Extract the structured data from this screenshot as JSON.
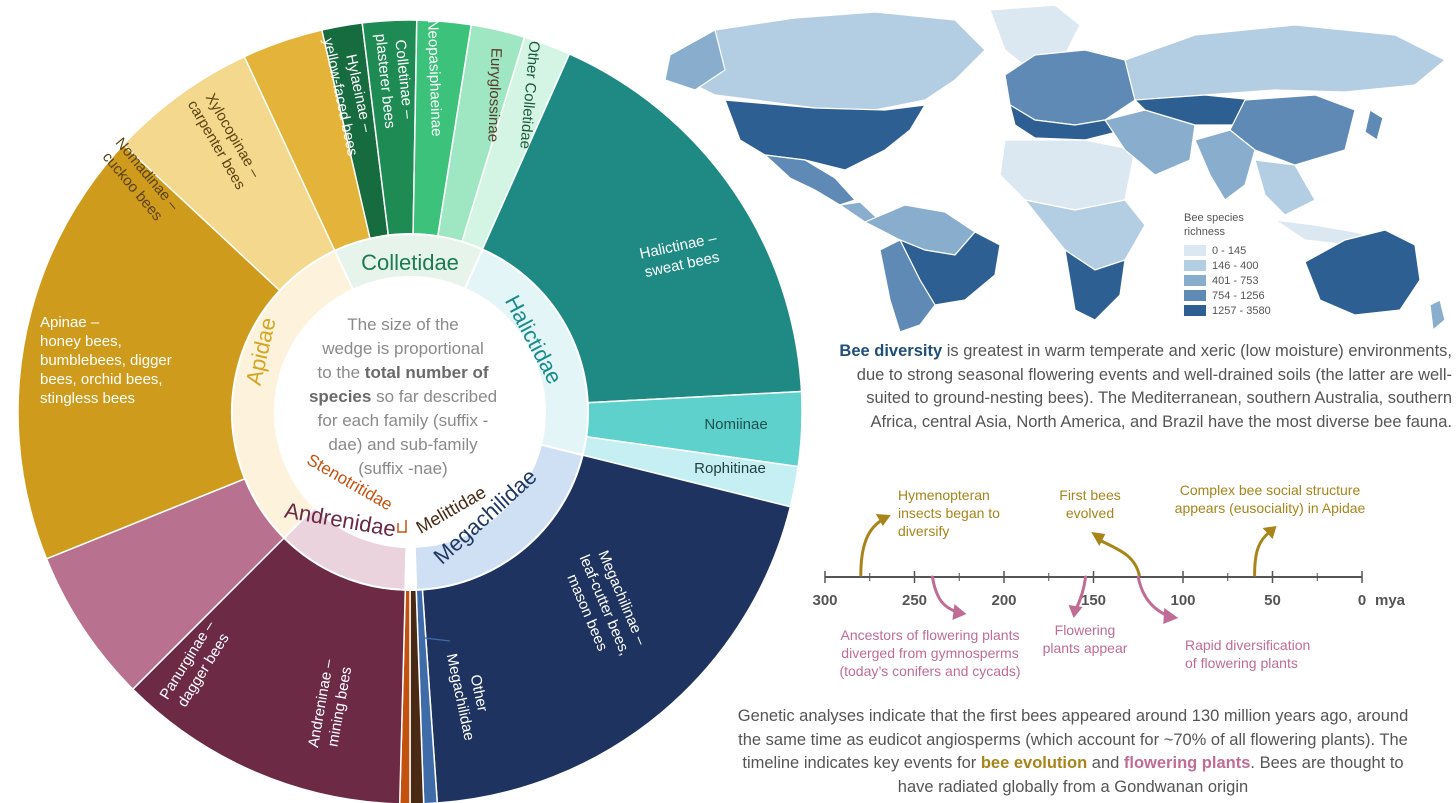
{
  "center_text": {
    "lines": [
      "The size of the",
      "wedge is proportional",
      "to the",
      "total number of",
      "species",
      "so far described",
      "for each family (suffix -",
      "dae) and sub-family",
      "(suffix -nae)"
    ]
  },
  "families": [
    {
      "name": "Colletidae",
      "color": "#1e7b4f",
      "fill": "#e6f4ec"
    },
    {
      "name": "Halictidae",
      "color": "#1a8a8a",
      "fill": "#e3f5f7"
    },
    {
      "name": "Megachilidae",
      "color": "#1f3864",
      "fill": "#cfe0f4"
    },
    {
      "name": "Melittidae",
      "color": "#4a2a14",
      "fill": "#ffffff"
    },
    {
      "name": "Andrenidae",
      "color": "#6b2a44",
      "fill": "#ead3dc"
    },
    {
      "name": "Stenotritidae",
      "color": "#c4520f",
      "fill": "#ffffff"
    },
    {
      "name": "Apidae",
      "color": "#d4a520",
      "fill": "#fdf3dc"
    }
  ],
  "subfamilies": [
    {
      "label": [
        "Hylaeinae –",
        "yellow-faced bees"
      ],
      "color": "#166b3f"
    },
    {
      "label": [
        "Colletinae –",
        "plasterer bees"
      ],
      "color": "#1f8b54"
    },
    {
      "label": [
        "Neopasiphaeinae"
      ],
      "color": "#3cc27a"
    },
    {
      "label": [
        "Euryglossinae"
      ],
      "color": "#9fe6c2"
    },
    {
      "label": [
        "Other Colletidae"
      ],
      "color": "#d4f5e4"
    },
    {
      "label": [
        "Halictinae –",
        "sweat bees"
      ],
      "color": "#1f8a84"
    },
    {
      "label": [
        "Nomiinae"
      ],
      "color": "#5fd1cd"
    },
    {
      "label": [
        "Rophitinae"
      ],
      "color": "#c5eff2"
    },
    {
      "label": [
        "Megachilinae –",
        "leaf-cutter bees,",
        "mason bees"
      ],
      "color": "#1f3360"
    },
    {
      "label": [
        "Other",
        "Megachilidae"
      ],
      "color": "#3f6ca8"
    },
    {
      "label": [
        "Melittidae"
      ],
      "color": "#4a2a14"
    },
    {
      "label": [
        "Stenotritidae"
      ],
      "color": "#c4520f"
    },
    {
      "label": [
        "Andreninae –",
        "mining bees"
      ],
      "color": "#6c2a44"
    },
    {
      "label": [
        "Panurginae –",
        "dagger bees"
      ],
      "color": "#b8728f"
    },
    {
      "label": [
        "Apinae –",
        "honey bees,",
        "bumblebees, digger",
        "bees, orchid bees,",
        "stingless bees"
      ],
      "color": "#cf9b1c"
    },
    {
      "label": [
        "Nomadinae –",
        "cuckoo bees"
      ],
      "color": "#e4b43a"
    },
    {
      "label": [
        "Xylocopinae –",
        "carpenter bees"
      ],
      "color": "#f4d88e"
    }
  ],
  "map": {
    "legend_title": [
      "Bee species",
      "richness"
    ],
    "legend": [
      {
        "range": "0 - 145",
        "color": "#dbe8f2"
      },
      {
        "range": "146 - 400",
        "color": "#b3cde2"
      },
      {
        "range": "401 - 753",
        "color": "#89aecd"
      },
      {
        "range": "754 - 1256",
        "color": "#5e8ab5"
      },
      {
        "range": "1257 - 3580",
        "color": "#2e5f93"
      }
    ]
  },
  "diversity_text": {
    "bold": "Bee diversity",
    "rest": " is greatest in warm temperate and xeric (low moisture) environments, due to strong seasonal flowering events and well-drained soils (the latter are well-suited to ground-nesting bees). The Mediterranean, southern Australia, southern Africa, central Asia, North America, and Brazil have the most diverse bee fauna."
  },
  "timeline": {
    "ticks": [
      "300",
      "250",
      "200",
      "150",
      "100",
      "50",
      "0"
    ],
    "unit": "mya",
    "bee_color": "#a8841a",
    "plant_color": "#c06c95",
    "bee_events": [
      {
        "mya": 280,
        "lines": [
          "Hymenopteran",
          "insects began to",
          "diversify"
        ]
      },
      {
        "mya": 130,
        "lines": [
          "First bees",
          "evolved"
        ]
      },
      {
        "mya": 60,
        "lines": [
          "Complex bee social structure",
          "appears (eusociality) in Apidae"
        ]
      }
    ],
    "plant_events": [
      {
        "mya": 240,
        "lines": [
          "Ancestors of flowering plants",
          "diverged from gymnosperms",
          "(today’s conifers and cycads)"
        ]
      },
      {
        "mya": 160,
        "lines": [
          "Flowering",
          "plants appear"
        ]
      },
      {
        "mya": 125,
        "lines": [
          "Rapid diversification",
          "of flowering plants"
        ]
      }
    ]
  },
  "genetic_text": {
    "part1": "Genetic analyses indicate that the first bees appeared around 130 million years ago, around the same time as eudicot angiosperms (which account for ~70% of all flowering plants). The timeline indicates key events for ",
    "bee": "bee evolution",
    "and": " and ",
    "plant": "flowering plants",
    "part2": ". Bees are thought to have radiated globally from a Gondwanan origin"
  }
}
